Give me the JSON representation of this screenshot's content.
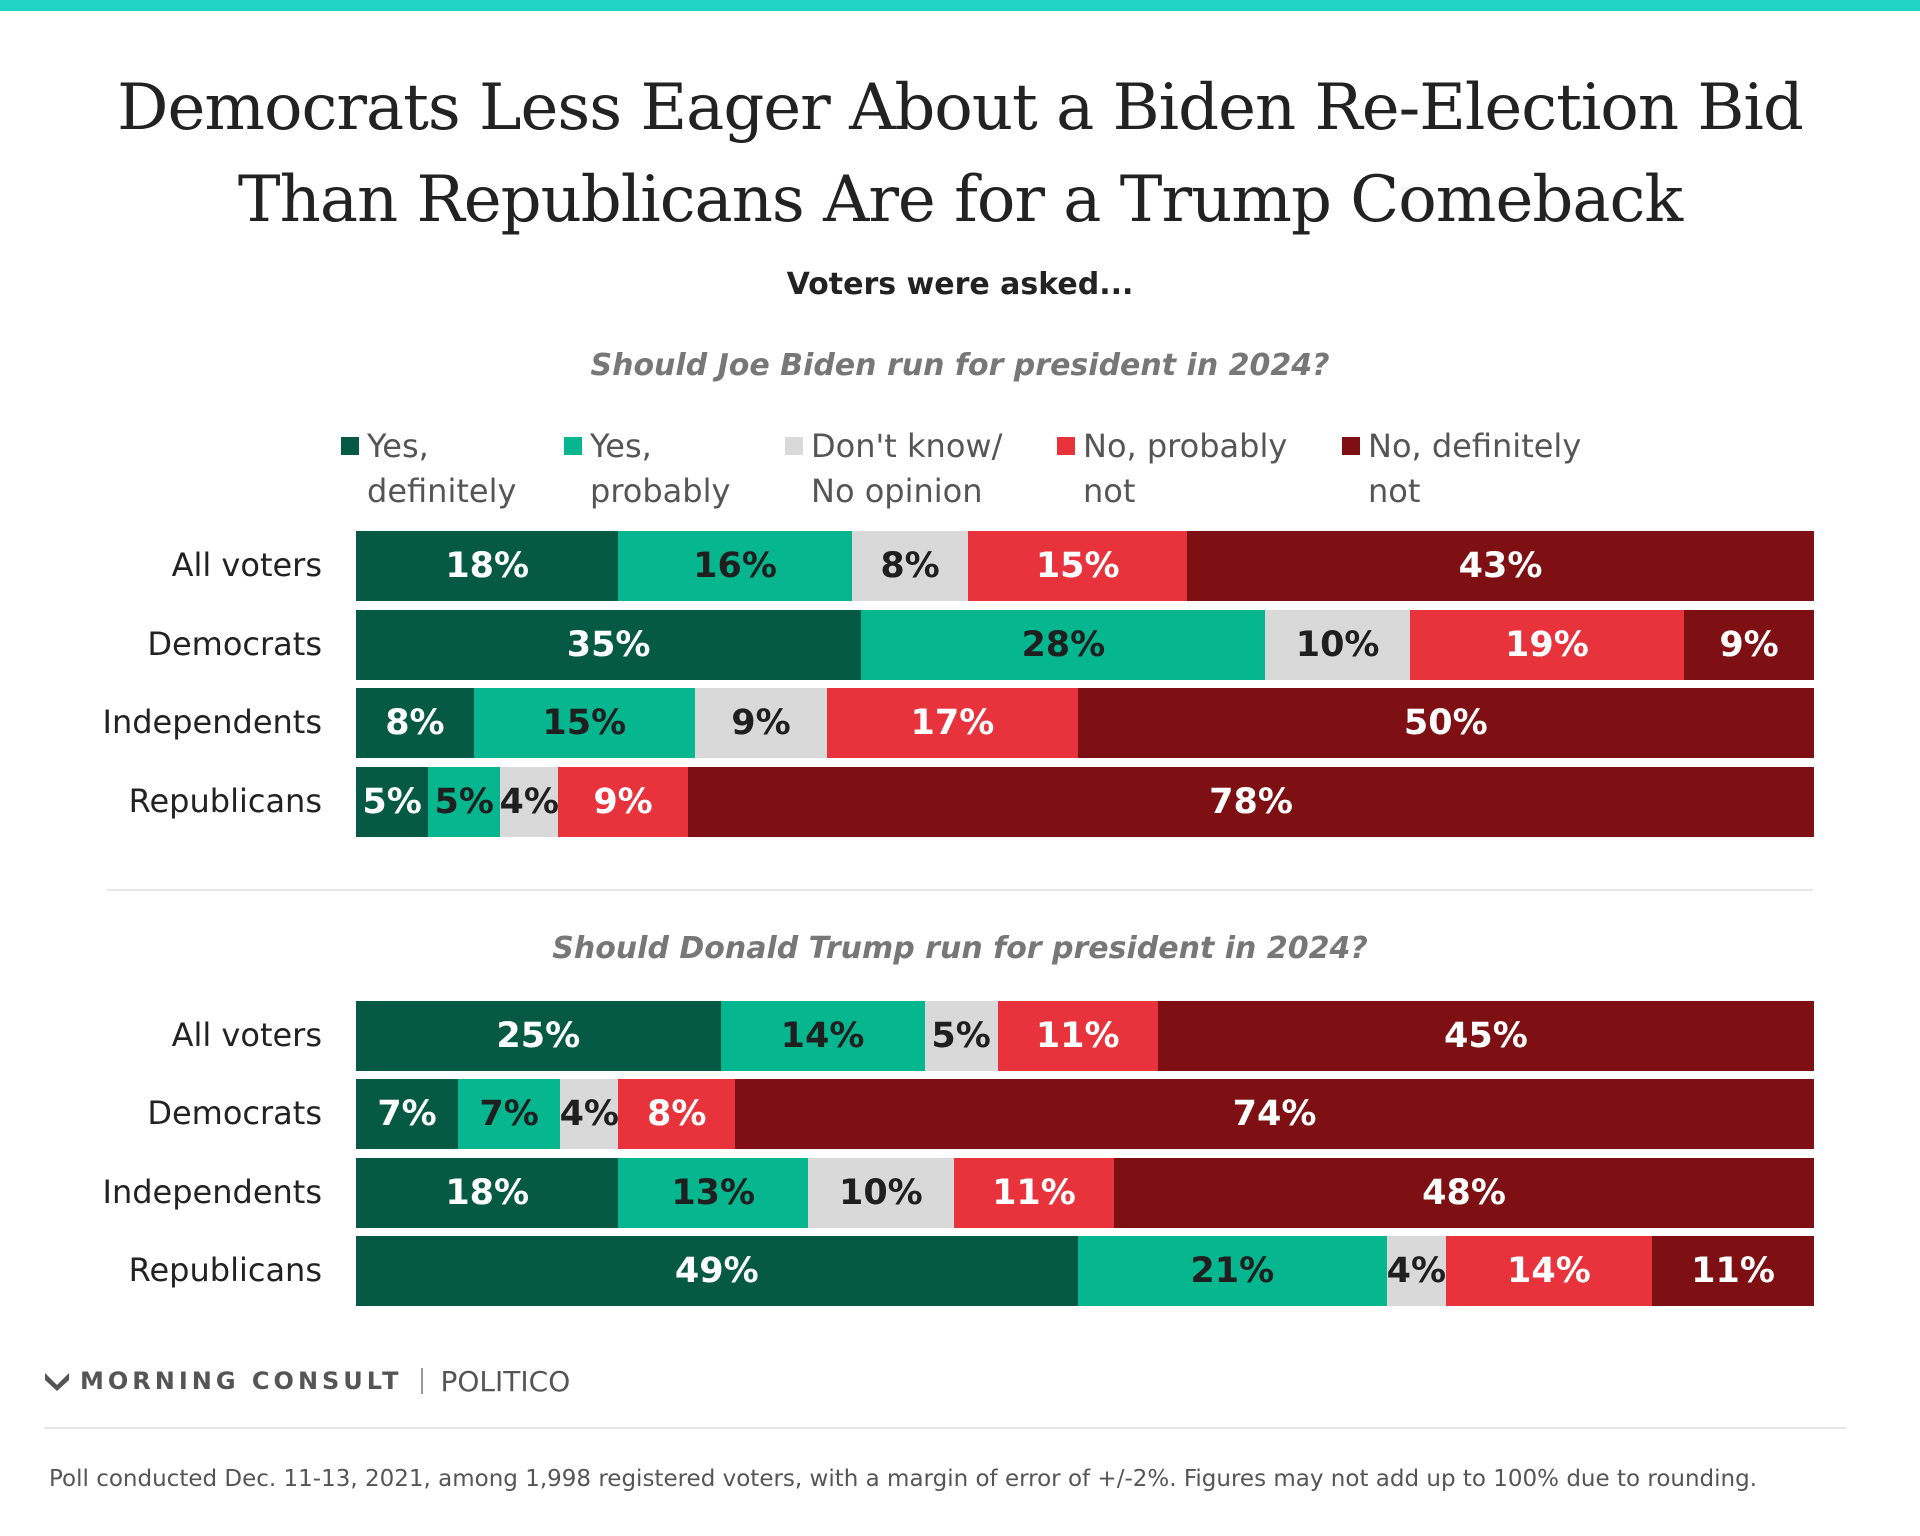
{
  "title": [
    "Democrats Less Eager About a Biden Re-Election Bid",
    "Than Republicans Are for a Trump Comeback"
  ],
  "subtitle": "Voters were asked...",
  "legend": [
    {
      "line1": "Yes,",
      "line2": "definitely",
      "color": "#065a43"
    },
    {
      "line1": "Yes,",
      "line2": "probably",
      "color": "#05b68e"
    },
    {
      "line1": "Don't know/",
      "line2": "No opinion",
      "color": "#d9d9d9"
    },
    {
      "line1": "No, probably",
      "line2": "not",
      "color": "#e8333c"
    },
    {
      "line1": "No, definitely",
      "line2": "not",
      "color": "#7e0f12"
    }
  ],
  "chart_data": [
    {
      "type": "bar",
      "orientation": "horizontal",
      "stacked": true,
      "title": "Should Joe Biden run for president in 2024?",
      "categories": [
        "All voters",
        "Democrats",
        "Independents",
        "Republicans"
      ],
      "series": [
        {
          "name": "Yes, definitely",
          "values": [
            18,
            35,
            8,
            5
          ]
        },
        {
          "name": "Yes, probably",
          "values": [
            16,
            28,
            15,
            5
          ]
        },
        {
          "name": "Don't know/No opinion",
          "values": [
            8,
            10,
            9,
            4
          ]
        },
        {
          "name": "No, probably not",
          "values": [
            15,
            19,
            17,
            9
          ]
        },
        {
          "name": "No, definitely not",
          "values": [
            43,
            9,
            50,
            78
          ]
        }
      ],
      "value_suffix": "%",
      "legend": "top"
    },
    {
      "type": "bar",
      "orientation": "horizontal",
      "stacked": true,
      "title": "Should Donald Trump run for president in 2024?",
      "categories": [
        "All voters",
        "Democrats",
        "Independents",
        "Republicans"
      ],
      "series": [
        {
          "name": "Yes, definitely",
          "values": [
            25,
            7,
            18,
            49
          ]
        },
        {
          "name": "Yes, probably",
          "values": [
            14,
            7,
            13,
            21
          ]
        },
        {
          "name": "Don't know/No opinion",
          "values": [
            5,
            4,
            10,
            4
          ]
        },
        {
          "name": "No, probably not",
          "values": [
            11,
            8,
            11,
            14
          ]
        },
        {
          "name": "No, definitely not",
          "values": [
            45,
            74,
            48,
            11
          ]
        }
      ],
      "value_suffix": "%",
      "legend": "top"
    }
  ],
  "label_colors": [
    "#ffffff",
    "#1f1f1f",
    "#1f1f1f",
    "#ffffff",
    "#ffffff"
  ],
  "brand": {
    "morning_consult": "MORNING CONSULT",
    "politico": "POLITICO"
  },
  "footnote": "Poll conducted Dec. 11-13, 2021, among 1,998 registered voters, with a margin of error of +/-2%. Figures may not add up to 100% due to rounding."
}
